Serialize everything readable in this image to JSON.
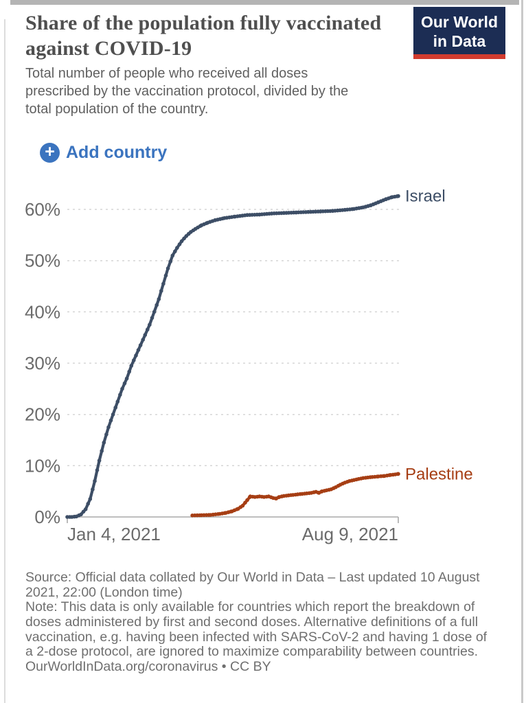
{
  "header": {
    "title": "Share of the population fully vaccinated against COVID-19",
    "subtitle": "Total number of people who received all doses prescribed by the vaccination protocol, divided by the total population of the country.",
    "logo": {
      "line1": "Our World",
      "line2": "in Data"
    }
  },
  "controls": {
    "add_country_label": "Add country",
    "plus_glyph": "+"
  },
  "chart_data": {
    "type": "line",
    "title": "Share of the population fully vaccinated against COVID-19",
    "xlabel": "",
    "ylabel": "",
    "grid": "dashed horizontal",
    "legend_position": "end-of-line labels",
    "x_axis": {
      "start_label": "Jan 4, 2021",
      "end_label": "Aug 9, 2021",
      "start_day": 0,
      "end_day": 217,
      "unit": "date"
    },
    "y_axis": {
      "unit": "%",
      "min": 0,
      "max": 65,
      "ticks": [
        {
          "label": "0%",
          "value": 0
        },
        {
          "label": "10%",
          "value": 10
        },
        {
          "label": "20%",
          "value": 20
        },
        {
          "label": "30%",
          "value": 30
        },
        {
          "label": "40%",
          "value": 40
        },
        {
          "label": "50%",
          "value": 50
        },
        {
          "label": "60%",
          "value": 60
        }
      ]
    },
    "series": [
      {
        "name": "Israel",
        "color": "#3d4e66",
        "end_value_pct": 62.6,
        "points": [
          [
            0,
            0
          ],
          [
            3,
            0
          ],
          [
            6,
            0.1
          ],
          [
            9,
            0.5
          ],
          [
            12,
            1.5
          ],
          [
            15,
            3.5
          ],
          [
            18,
            7
          ],
          [
            21,
            11
          ],
          [
            24,
            14.5
          ],
          [
            27,
            17.5
          ],
          [
            30,
            20
          ],
          [
            33,
            22.5
          ],
          [
            36,
            25
          ],
          [
            39,
            27
          ],
          [
            42,
            29.5
          ],
          [
            45,
            31.5
          ],
          [
            48,
            33.5
          ],
          [
            51,
            35.5
          ],
          [
            54,
            37.5
          ],
          [
            57,
            40
          ],
          [
            60,
            42.5
          ],
          [
            63,
            45.5
          ],
          [
            66,
            48.5
          ],
          [
            69,
            51
          ],
          [
            72,
            52.5
          ],
          [
            75,
            53.8
          ],
          [
            78,
            54.8
          ],
          [
            81,
            55.6
          ],
          [
            84,
            56.2
          ],
          [
            88,
            56.9
          ],
          [
            92,
            57.4
          ],
          [
            97,
            57.9
          ],
          [
            103,
            58.3
          ],
          [
            110,
            58.6
          ],
          [
            118,
            58.9
          ],
          [
            126,
            59.0
          ],
          [
            134,
            59.2
          ],
          [
            142,
            59.3
          ],
          [
            150,
            59.4
          ],
          [
            158,
            59.5
          ],
          [
            166,
            59.6
          ],
          [
            174,
            59.7
          ],
          [
            182,
            59.9
          ],
          [
            188,
            60.1
          ],
          [
            194,
            60.4
          ],
          [
            199,
            60.8
          ],
          [
            204,
            61.4
          ],
          [
            209,
            62.0
          ],
          [
            213,
            62.4
          ],
          [
            217,
            62.6
          ]
        ]
      },
      {
        "name": "Palestine",
        "color": "#a63e14",
        "end_value_pct": 8.4,
        "points": [
          [
            82,
            0.3
          ],
          [
            88,
            0.35
          ],
          [
            94,
            0.4
          ],
          [
            100,
            0.6
          ],
          [
            104,
            0.8
          ],
          [
            108,
            1.1
          ],
          [
            112,
            1.6
          ],
          [
            115,
            2.2
          ],
          [
            118,
            3.3
          ],
          [
            120,
            4.0
          ],
          [
            123,
            3.9
          ],
          [
            126,
            4.0
          ],
          [
            129,
            3.9
          ],
          [
            132,
            4.0
          ],
          [
            135,
            3.7
          ],
          [
            137,
            3.6
          ],
          [
            139,
            3.9
          ],
          [
            142,
            4.1
          ],
          [
            145,
            4.2
          ],
          [
            148,
            4.3
          ],
          [
            151,
            4.4
          ],
          [
            154,
            4.5
          ],
          [
            157,
            4.6
          ],
          [
            160,
            4.7
          ],
          [
            163,
            4.9
          ],
          [
            165,
            4.7
          ],
          [
            167,
            5.0
          ],
          [
            170,
            5.2
          ],
          [
            173,
            5.4
          ],
          [
            176,
            5.8
          ],
          [
            179,
            6.3
          ],
          [
            182,
            6.7
          ],
          [
            185,
            7.0
          ],
          [
            188,
            7.2
          ],
          [
            191,
            7.4
          ],
          [
            194,
            7.6
          ],
          [
            197,
            7.7
          ],
          [
            200,
            7.8
          ],
          [
            204,
            7.9
          ],
          [
            208,
            8.0
          ],
          [
            212,
            8.2
          ],
          [
            215,
            8.3
          ],
          [
            217,
            8.4
          ]
        ]
      }
    ]
  },
  "footer": {
    "source": "Source: Official data collated by Our World in Data – Last updated 10 August 2021, 22:00 (London time)",
    "note": "Note: This data is only available for countries which report the breakdown of doses administered by first and second doses. Alternative definitions of a full vaccination, e.g. having been infected with SARS-CoV-2 and having 1 dose of a 2-dose protocol, are ignored to maximize comparability between countries.",
    "link": "OurWorldInData.org/coronavirus • CC BY"
  },
  "colors": {
    "accent_blue": "#3b74bf",
    "logo_navy": "#1c2d54",
    "logo_red": "#d23b2e",
    "title_text": "#4f4f4f",
    "subtitle_text": "#606060",
    "footer_text": "#6f6f6f",
    "axis_text": "#6b6b6b",
    "axis_line": "#a9a9a9",
    "gridline": "#d6d6d6",
    "israel_line": "#3d4e66",
    "palestine_line": "#a63e14"
  }
}
